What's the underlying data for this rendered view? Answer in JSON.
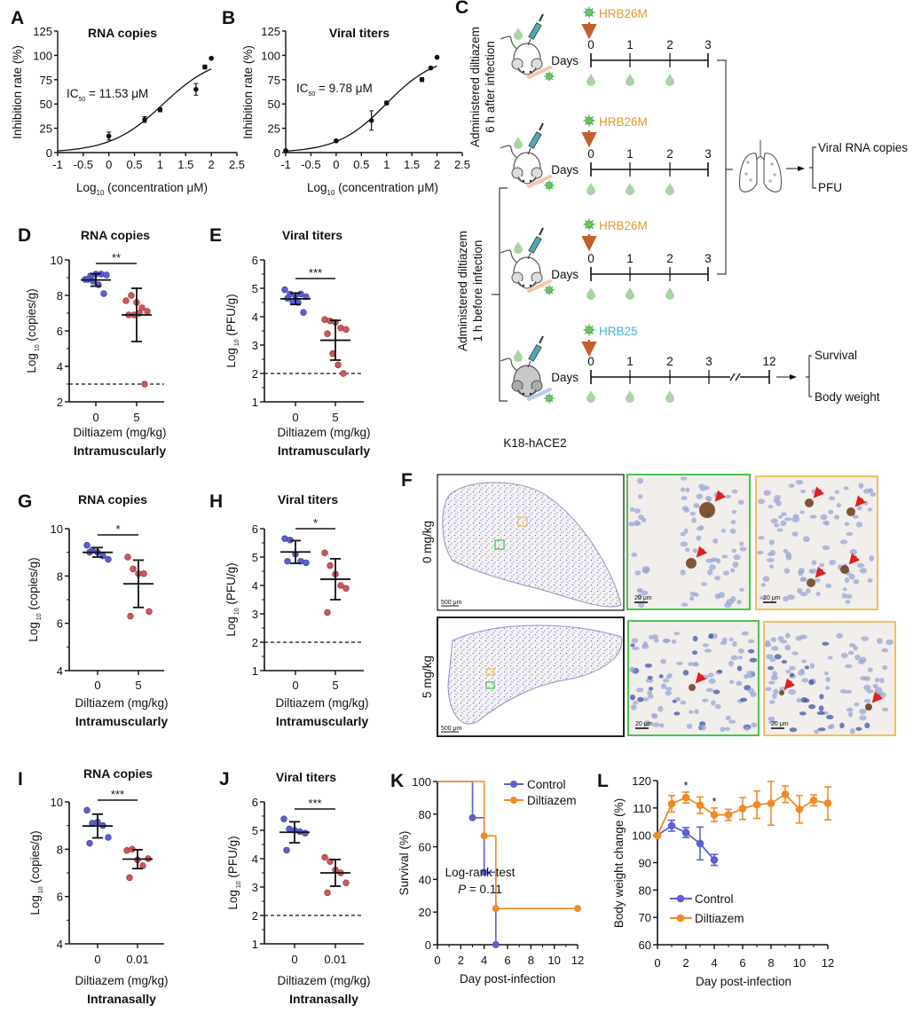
{
  "colors": {
    "control": "#5b5fd0",
    "treated": "#cf565c",
    "diltiazem": "#f08a24",
    "hrb26m": "#e0982c",
    "hrb25": "#3fb5d0",
    "arrow": "#c0602a",
    "green_box": "#4cc34c",
    "orange_box": "#f0c060"
  },
  "chart_data": [
    {
      "panel": "A",
      "type": "line",
      "title": "RNA copies",
      "ylabel": "Inhibition rate (%)",
      "xlabel": [
        "Log",
        "10",
        " (concentration μM)"
      ],
      "annotation": [
        "IC",
        "50",
        " = 11.53 μM"
      ],
      "ic50_uM": 11.53,
      "xlim": [
        -1,
        2.5
      ],
      "ylim": [
        0,
        125
      ],
      "xticks": [
        -1,
        -0.5,
        0,
        0.5,
        1,
        1.5,
        2,
        2.5
      ],
      "yticks": [
        0,
        25,
        50,
        75,
        100,
        125
      ],
      "points": [
        {
          "x": 0,
          "y": 17,
          "err": 4
        },
        {
          "x": 0.7,
          "y": 34,
          "err": 3
        },
        {
          "x": 1,
          "y": 44,
          "err": 2
        },
        {
          "x": 1.7,
          "y": 65,
          "err": 6
        },
        {
          "x": 1.875,
          "y": 88,
          "err": 2
        },
        {
          "x": 2,
          "y": 97,
          "err": 1
        }
      ]
    },
    {
      "panel": "B",
      "type": "line",
      "title": "Viral titers",
      "ylabel": "Inhibition rate (%)",
      "xlabel": [
        "Log",
        "10",
        " (concentration μM)"
      ],
      "annotation": [
        "IC",
        "50",
        " = 9.78 μM"
      ],
      "ic50_uM": 9.78,
      "xlim": [
        -1,
        2.5
      ],
      "ylim": [
        0,
        125
      ],
      "xticks": [
        -1,
        -0.5,
        0,
        0.5,
        1,
        1.5,
        2,
        2.5
      ],
      "yticks": [
        0,
        25,
        50,
        75,
        100,
        125
      ],
      "points": [
        {
          "x": -1,
          "y": 2,
          "err": 1
        },
        {
          "x": 0,
          "y": 12,
          "err": 1
        },
        {
          "x": 0.7,
          "y": 33,
          "err": 10
        },
        {
          "x": 1,
          "y": 51,
          "err": 2
        },
        {
          "x": 1.7,
          "y": 75,
          "err": 2
        },
        {
          "x": 1.875,
          "y": 87,
          "err": 1
        },
        {
          "x": 2,
          "y": 98,
          "err": 1
        }
      ]
    },
    {
      "panel": "D",
      "type": "scatter",
      "title": "RNA copies",
      "ylabel": [
        "Log",
        " 10",
        " (copies/g)"
      ],
      "xlabel": "Diltiazem (mg/kg)",
      "route": "Intramuscularly",
      "categories": [
        "0",
        "5"
      ],
      "ylim": [
        2,
        10
      ],
      "yticks": [
        2,
        4,
        6,
        8,
        10
      ],
      "detection_limit": 3,
      "significance": "**",
      "groups": [
        {
          "values": [
            8.9,
            9.1,
            9.2,
            9.2,
            9.15,
            8.9,
            8.8,
            8.6,
            8.1
          ],
          "mean": 8.87,
          "sd": 0.35
        },
        {
          "values": [
            7.7,
            8.0,
            7.6,
            7.3,
            7.1,
            6.9,
            6.9,
            7.0,
            3.0
          ],
          "mean": 6.9,
          "sd": 1.5
        }
      ]
    },
    {
      "panel": "E",
      "type": "scatter",
      "title": "Viral titers",
      "ylabel": [
        "Log",
        " 10",
        " (PFU/g)"
      ],
      "xlabel": "Diltiazem (mg/kg)",
      "route": "Intramuscularly",
      "categories": [
        "0",
        "5"
      ],
      "ylim": [
        1,
        6
      ],
      "yticks": [
        1,
        2,
        3,
        4,
        5,
        6
      ],
      "detection_limit": 2,
      "significance": "***",
      "groups": [
        {
          "values": [
            4.95,
            4.8,
            4.75,
            4.8,
            4.7,
            4.65,
            4.55,
            4.5,
            4.15
          ],
          "mean": 4.63,
          "sd": 0.2
        },
        {
          "values": [
            3.9,
            3.85,
            3.8,
            3.6,
            3.55,
            3.4,
            2.7,
            2.3,
            2.0
          ],
          "mean": 3.17,
          "sd": 0.7
        }
      ]
    },
    {
      "panel": "G",
      "type": "scatter",
      "title": "RNA copies",
      "ylabel": [
        "Log",
        " 10",
        " (copies/g)"
      ],
      "xlabel": "Diltiazem (mg/kg)",
      "route": "Intramuscularly",
      "categories": [
        "0",
        "5"
      ],
      "ylim": [
        4,
        10
      ],
      "yticks": [
        4,
        6,
        8,
        10
      ],
      "detection_limit": null,
      "significance": "*",
      "groups": [
        {
          "values": [
            9.3,
            9.1,
            9.0,
            8.85,
            8.7,
            9.0
          ],
          "mean": 9.0,
          "sd": 0.2
        },
        {
          "values": [
            8.8,
            8.3,
            8.1,
            8.1,
            6.5,
            6.3
          ],
          "mean": 7.67,
          "sd": 1.0
        }
      ]
    },
    {
      "panel": "H",
      "type": "scatter",
      "title": "Viral titers",
      "ylabel": [
        "Log",
        " 10",
        " (PFU/g)"
      ],
      "xlabel": "Diltiazem (mg/kg)",
      "route": "Intramuscularly",
      "categories": [
        "0",
        "5"
      ],
      "ylim": [
        1,
        6
      ],
      "yticks": [
        1,
        2,
        3,
        4,
        5,
        6
      ],
      "detection_limit": 2,
      "significance": "*",
      "groups": [
        {
          "values": [
            5.65,
            5.6,
            5.1,
            4.85,
            4.8,
            4.85
          ],
          "mean": 5.18,
          "sd": 0.4
        },
        {
          "values": [
            5.15,
            4.7,
            4.4,
            4.0,
            3.9,
            3.05
          ],
          "mean": 4.22,
          "sd": 0.72
        }
      ]
    },
    {
      "panel": "I",
      "type": "scatter",
      "title": "RNA copies",
      "ylabel": [
        "Log",
        " 10",
        " (copies/g)"
      ],
      "xlabel": "Diltiazem (mg/kg)",
      "route": "Intranasally",
      "categories": [
        "0",
        "0.01"
      ],
      "ylim": [
        4,
        10
      ],
      "yticks": [
        4,
        6,
        8,
        10
      ],
      "detection_limit": null,
      "significance": "***",
      "groups": [
        {
          "values": [
            9.65,
            9.1,
            9.15,
            9.0,
            8.5,
            8.25
          ],
          "mean": 8.98,
          "sd": 0.5
        },
        {
          "values": [
            7.95,
            8.0,
            7.55,
            7.3,
            7.6,
            6.8
          ],
          "mean": 7.58,
          "sd": 0.4
        }
      ]
    },
    {
      "panel": "J",
      "type": "scatter",
      "title": "Viral titers",
      "ylabel": [
        "Log",
        " 10",
        " (PFU/g)"
      ],
      "xlabel": "Diltiazem (mg/kg)",
      "route": "Intranasally",
      "categories": [
        "0",
        "0.01"
      ],
      "ylim": [
        1,
        6
      ],
      "yticks": [
        1,
        2,
        3,
        4,
        5,
        6
      ],
      "detection_limit": 2,
      "significance": "***",
      "groups": [
        {
          "values": [
            5.4,
            5.05,
            5.0,
            4.95,
            4.9,
            4.3
          ],
          "mean": 4.93,
          "sd": 0.37
        },
        {
          "values": [
            4.05,
            3.9,
            3.6,
            3.5,
            3.15,
            2.8
          ],
          "mean": 3.5,
          "sd": 0.47
        }
      ]
    },
    {
      "panel": "K",
      "type": "line",
      "ylabel": "Survival (%)",
      "xlabel": "Day post-infection",
      "xlim": [
        0,
        12
      ],
      "ylim": [
        0,
        100
      ],
      "xticks": [
        0,
        2,
        4,
        6,
        8,
        10,
        12
      ],
      "yticks": [
        0,
        20,
        40,
        60,
        80,
        100
      ],
      "legend": "top-right",
      "annotation": [
        "Log-rank test",
        "P",
        " = 0.11"
      ],
      "series": [
        {
          "name": "Control",
          "x": [
            0,
            3,
            4,
            5
          ],
          "y": [
            100,
            77.8,
            44.4,
            0
          ]
        },
        {
          "name": "Diltiazem",
          "x": [
            0,
            4,
            5,
            12
          ],
          "y": [
            100,
            66.7,
            22.2,
            22.2
          ]
        }
      ]
    },
    {
      "panel": "L",
      "type": "line",
      "ylabel": "Body weight change (%)",
      "xlabel": "Day post-infection",
      "xlim": [
        0,
        12
      ],
      "ylim": [
        60,
        120
      ],
      "xticks": [
        0,
        2,
        4,
        6,
        8,
        10,
        12
      ],
      "yticks": [
        60,
        70,
        80,
        90,
        100,
        110,
        120
      ],
      "legend": "bottom-left",
      "significance": [
        {
          "x": 2,
          "label": "*"
        },
        {
          "x": 4,
          "label": "*"
        }
      ],
      "series": [
        {
          "name": "Control",
          "x": [
            0,
            1,
            2,
            3,
            4
          ],
          "y": [
            100,
            103.5,
            101,
            97,
            91
          ],
          "err": [
            0,
            2,
            1.8,
            6,
            2
          ]
        },
        {
          "name": "Diltiazem",
          "x": [
            0,
            1,
            2,
            3,
            4,
            5,
            6,
            7,
            8,
            9,
            10,
            11,
            12
          ],
          "y": [
            100,
            111.5,
            113.8,
            111,
            107.5,
            107.5,
            109.8,
            111.2,
            111.7,
            115,
            109.5,
            112.8,
            111.7
          ],
          "err": [
            0,
            3,
            2,
            3,
            2.5,
            2,
            4,
            5,
            8,
            3,
            5,
            2,
            6
          ]
        }
      ]
    }
  ],
  "diagram_c": {
    "letter": "C",
    "group_labels": [
      [
        "Administered diltiazem",
        "6 h after infection"
      ],
      [
        "Administered diltiazem",
        "1 h before infection"
      ]
    ],
    "days_label": "Days",
    "rows": [
      {
        "virus": "HRB26M",
        "days": [
          "0",
          "1",
          "2",
          "3"
        ]
      },
      {
        "virus": "HRB26M",
        "days": [
          "0",
          "1",
          "2",
          "3"
        ]
      },
      {
        "virus": "HRB26M",
        "days": [
          "0",
          "1",
          "2",
          "3"
        ]
      },
      {
        "virus": "HRB25",
        "days": [
          "0",
          "1",
          "2",
          "3",
          "12"
        ]
      }
    ],
    "lung_outputs": [
      "Viral RNA copies",
      "PFU"
    ],
    "survival_outputs": [
      "Survival",
      "Body weight"
    ],
    "mouse_strain": "K18-hACE2"
  },
  "panel_f": {
    "letter": "F",
    "rows": [
      {
        "dose": "0 mg/kg",
        "overview_scale": "500 μm",
        "zoom_scale": "20 μm"
      },
      {
        "dose": "5 mg/kg",
        "overview_scale": "500 μm",
        "zoom_scale": "20 μm"
      }
    ]
  }
}
